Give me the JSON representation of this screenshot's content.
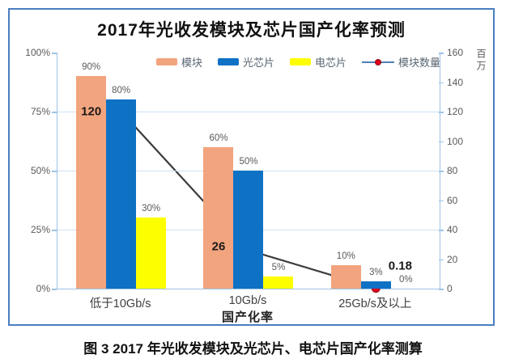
{
  "page": {
    "caption": "图 3 2017 年光收发模块及光芯片、电芯片国产化率测算"
  },
  "chart_data": {
    "type": "bar",
    "title": "2017年光收发模块及芯片国产化率预测",
    "categories": [
      "低于10Gb/s",
      "10Gb/s",
      "25Gb/s及以上"
    ],
    "xlabel": "国产化率",
    "bar_series": [
      {
        "name": "模块",
        "color": "#f2a47e",
        "values": [
          90,
          60,
          10
        ],
        "labels": [
          "90%",
          "60%",
          "10%"
        ]
      },
      {
        "name": "光芯片",
        "color": "#0f71c4",
        "values": [
          80,
          50,
          3
        ],
        "labels": [
          "80%",
          "50%",
          "3%"
        ]
      },
      {
        "name": "电芯片",
        "color": "#fdff00",
        "values": [
          30,
          5,
          0
        ],
        "labels": [
          "30%",
          "5%",
          "0%"
        ]
      }
    ],
    "line_series": {
      "name": "模块数量",
      "axis": "right",
      "color": "#3a3a3a",
      "marker_color": "#e0001b",
      "legend_line_color": "#4e7fb5",
      "values": [
        120,
        26,
        0.18
      ],
      "labels": [
        "120",
        "26",
        "0.18"
      ]
    },
    "left_axis": {
      "min": 0,
      "max": 100,
      "ticks": [
        "100%",
        "75%",
        "50%",
        "25%",
        "0%"
      ]
    },
    "right_axis": {
      "min": 0,
      "max": 160,
      "ticks": [
        "160",
        "140",
        "120",
        "100",
        "80",
        "60",
        "40",
        "20",
        "0"
      ],
      "label": "百万"
    },
    "legend_position": "top",
    "grid": true,
    "colors": {
      "figure_border": "#4a7ec0",
      "axis_line": "#9dc3e6",
      "gridline": "#cfe0f1",
      "tick_label": "#595959"
    }
  }
}
